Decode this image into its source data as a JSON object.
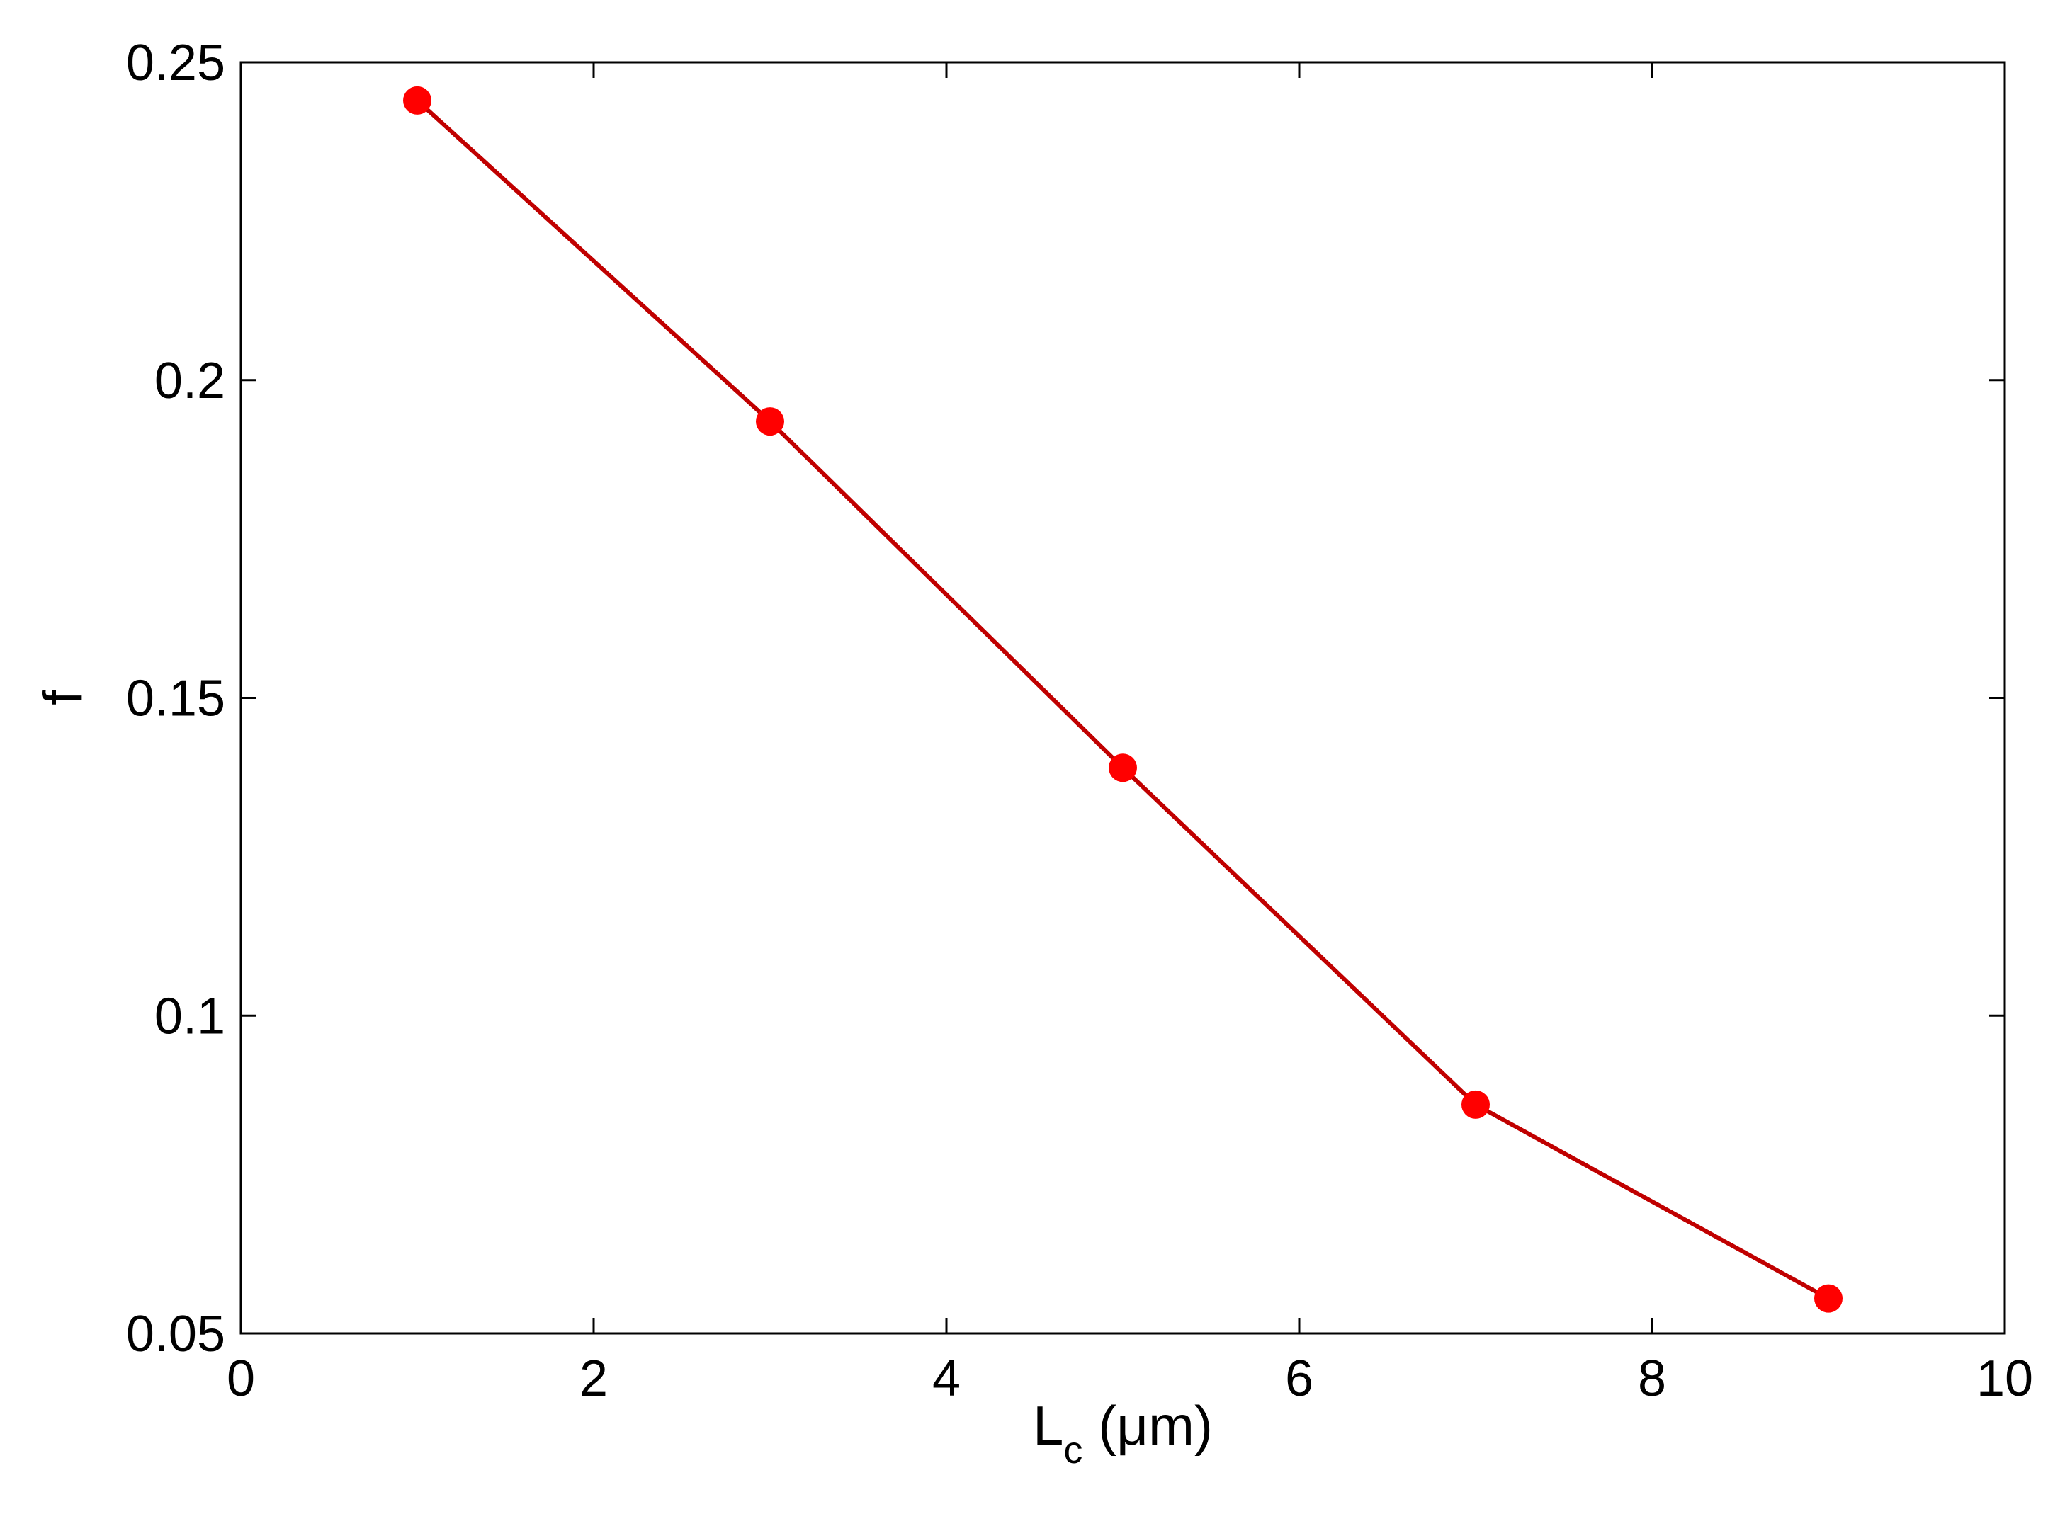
{
  "chart_data": {
    "type": "line",
    "title": "",
    "xlabel": "L",
    "xlabel_subscript": "c",
    "xlabel_unit": " (μm)",
    "ylabel": "f",
    "xlim": [
      0,
      10
    ],
    "ylim": [
      0.05,
      0.25
    ],
    "x_ticks": [
      0,
      2,
      4,
      6,
      8,
      10
    ],
    "x_tick_labels": [
      "0",
      "2",
      "4",
      "6",
      "8",
      "10"
    ],
    "y_ticks": [
      0.05,
      0.1,
      0.15,
      0.2,
      0.25
    ],
    "y_tick_labels": [
      "0.05",
      "0.1",
      "0.15",
      "0.2",
      "0.25"
    ],
    "grid": false,
    "series": [
      {
        "x": [
          1,
          3,
          5,
          7,
          9
        ],
        "y": [
          0.244,
          0.1935,
          0.139,
          0.086,
          0.0555
        ],
        "line_color": "#c00000",
        "marker_color": "#ff0000",
        "marker": "circle"
      }
    ]
  }
}
